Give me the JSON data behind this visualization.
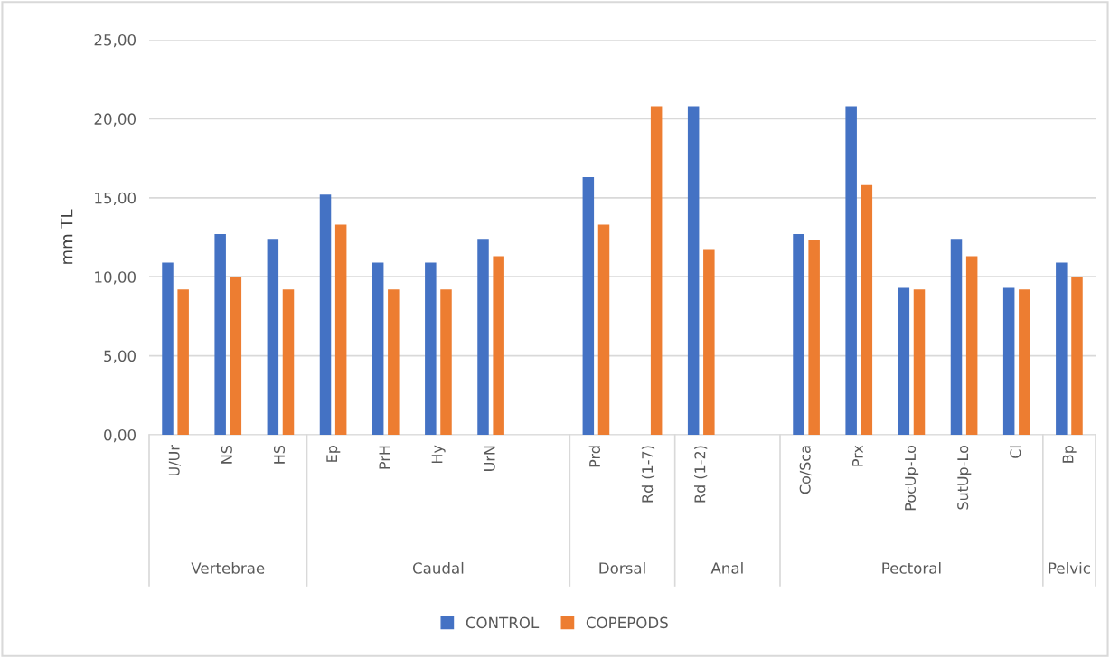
{
  "chart_data": {
    "type": "bar",
    "ylabel": "mm TL",
    "categories": [
      "U/Ur",
      "NS",
      "HS",
      "Ep",
      "PrH",
      "Hy",
      "UrN",
      null,
      "Prd",
      "Rd (1-7)",
      "Rd (1-2)",
      null,
      "Co/Sca",
      "Prx",
      "PocUp-Lo",
      "SutUp-Lo",
      "Cl",
      "Bp"
    ],
    "series": [
      {
        "name": "CONTROL",
        "color": "#4472c4",
        "values": [
          10.9,
          12.7,
          12.4,
          15.2,
          10.9,
          10.9,
          12.4,
          null,
          16.3,
          null,
          20.8,
          null,
          12.7,
          20.8,
          9.3,
          12.4,
          9.3,
          10.9
        ]
      },
      {
        "name": "COPEPODS",
        "color": "#ed7d31",
        "values": [
          9.2,
          10.0,
          9.2,
          13.3,
          9.2,
          9.2,
          11.3,
          null,
          13.3,
          20.8,
          11.7,
          null,
          12.3,
          15.8,
          9.2,
          11.3,
          9.2,
          10.0
        ]
      }
    ],
    "ylim": [
      0,
      25
    ],
    "yticks": [
      {
        "value": 0,
        "label": "0,00"
      },
      {
        "value": 5,
        "label": "5,00"
      },
      {
        "value": 10,
        "label": "10,00"
      },
      {
        "value": 15,
        "label": "15,00"
      },
      {
        "value": 20,
        "label": "20,00"
      },
      {
        "value": 25,
        "label": "25,00"
      }
    ],
    "annotations": [
      "Vertebrae",
      "Caudal",
      "Dorsal",
      "Anal",
      "Pectoral",
      "Pelvic"
    ],
    "grid": "y",
    "legend": "bottom"
  }
}
